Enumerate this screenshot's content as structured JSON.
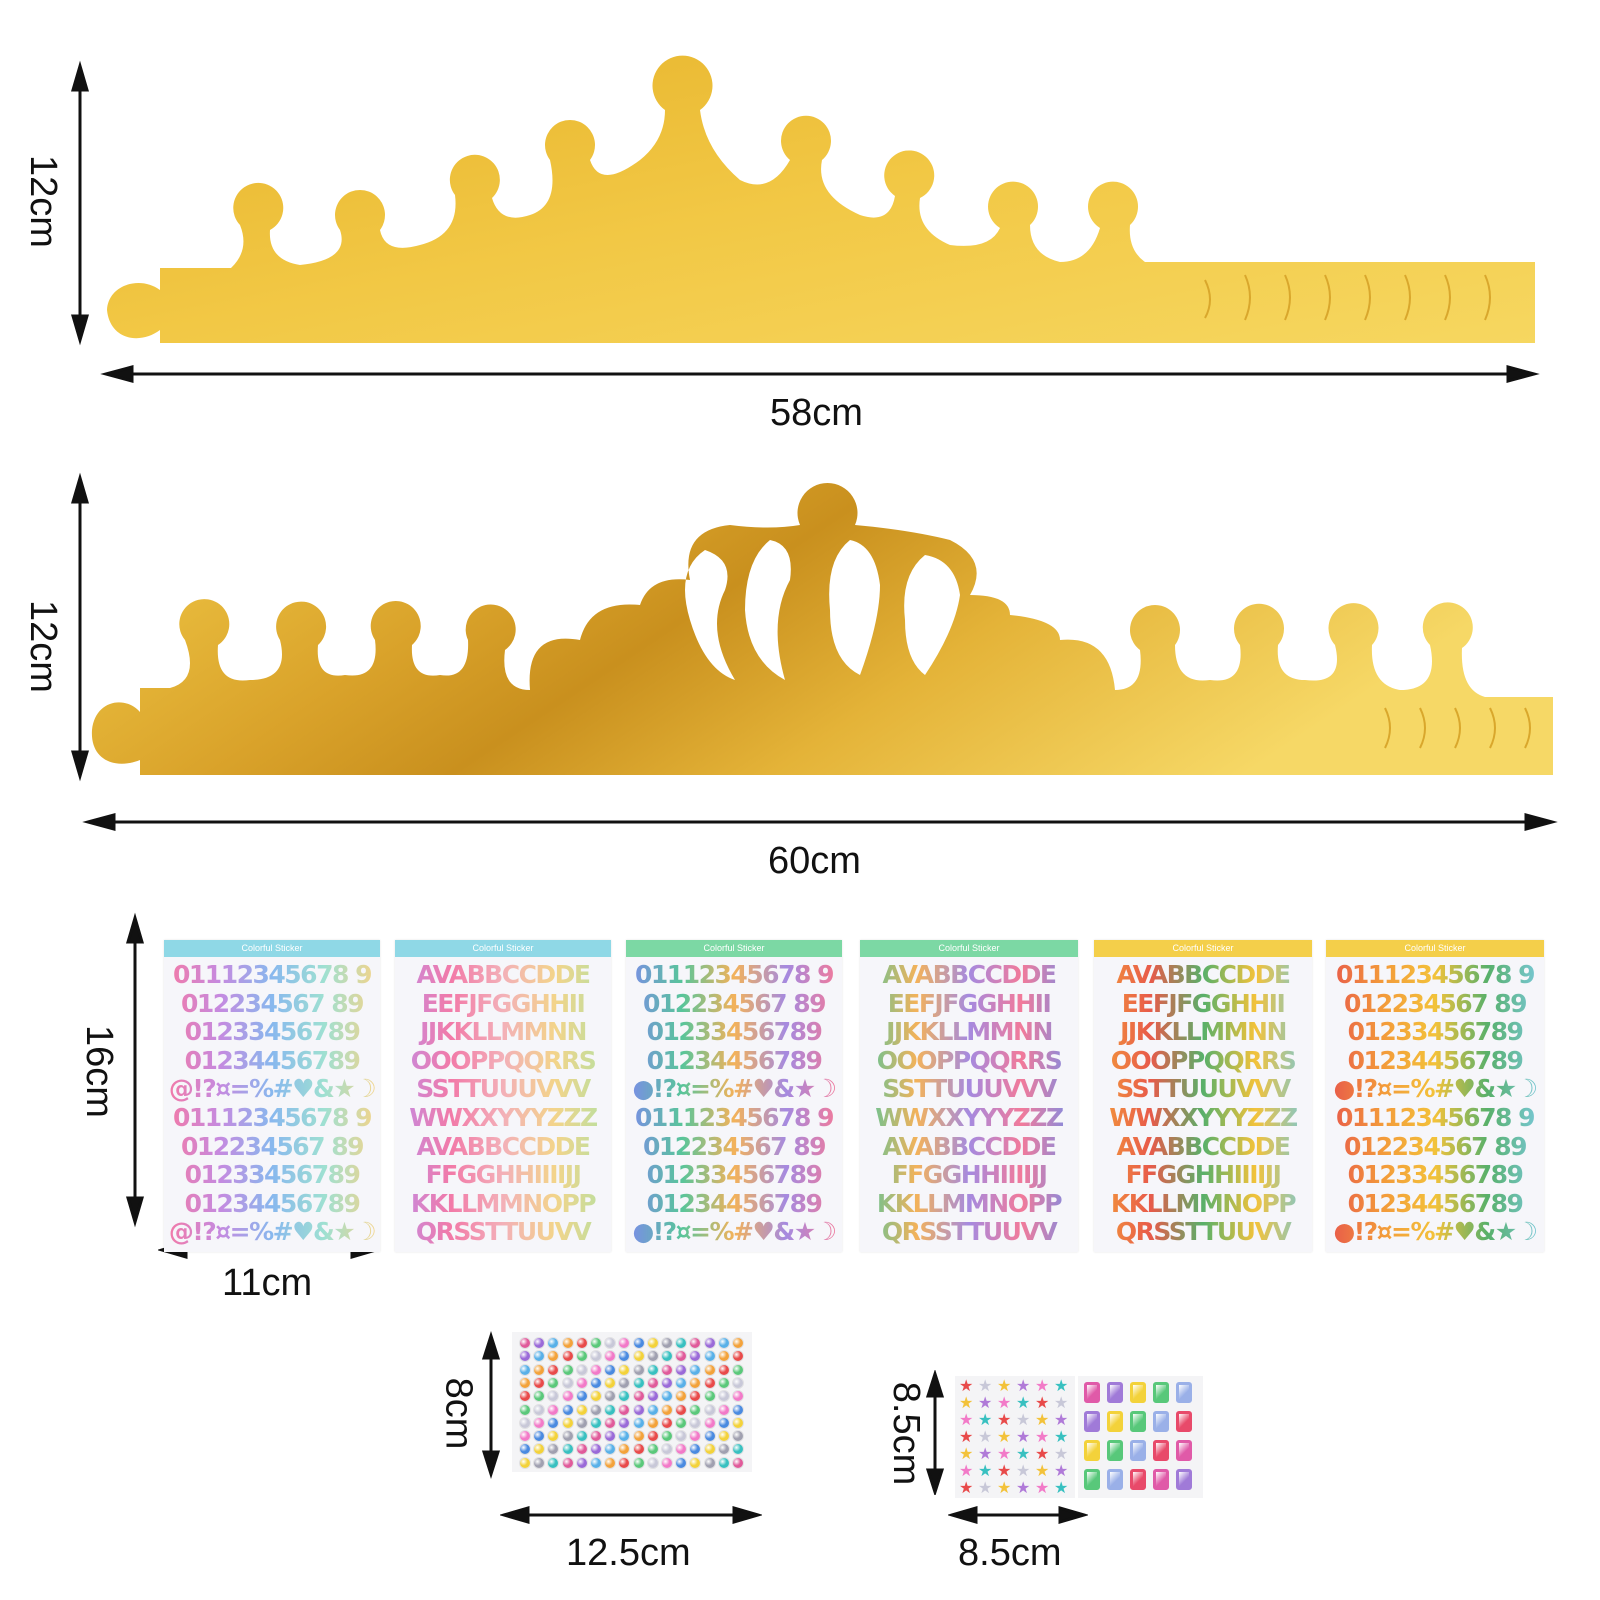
{
  "crown1": {
    "height_label": "12cm",
    "width_label": "58cm"
  },
  "crown2": {
    "height_label": "12cm",
    "width_label": "60cm"
  },
  "letter_sheets": {
    "height_label": "16cm",
    "width_label": "11cm",
    "header_text": "Colorful Sticker",
    "sheets": [
      {
        "color": "#8fd8e6",
        "gradient": "linear-gradient(90deg,#f27aa8,#c58ae0,#88b8ee,#9ee0d2,#f3d48a)",
        "rows": [
          "01112345678 9",
          "012234567 89",
          "01233456789",
          "01234456789",
          "@!?¤=%#♥&★☽",
          "01112345678 9",
          "012234567 89",
          "01233456789",
          "01234456789",
          "@!?¤=%#♥&★☽"
        ]
      },
      {
        "color": "#8fd8e6",
        "gradient": "linear-gradient(90deg,#c58ae0,#f27aa8,#f3b0b8,#f3d48a,#b8e0a0)",
        "rows": [
          "AVABBCCDDE",
          "EEFJFGGHHII",
          "JJKKLLMMNN",
          "OOOPPQQRRS",
          "SSTTUUUVVV",
          "WWXXYYYZZZ",
          "AVABBCCDDE",
          "FFGGHHIIIIJJ",
          "KKLLMMNOPP",
          "QRSSTTUUVV"
        ]
      },
      {
        "color": "#7cd8a4",
        "gradient": "linear-gradient(90deg,#7a8ee6,#58c59a,#f3b25a,#a58ae0,#f27a9a)",
        "rows": [
          "01112345678 9",
          "012234567 89",
          "01233456789",
          "01234456789",
          "●!?¤=%#♥&★☽",
          "01112345678 9",
          "012234567 89",
          "01233456789",
          "01234456789",
          "●!?¤=%#♥&★☽"
        ]
      },
      {
        "color": "#7cd8a4",
        "gradient": "linear-gradient(90deg,#58c59a,#f3b25a,#a58ae0,#f27a9a,#7a8ee6)",
        "rows": [
          "AVABBCCDDE",
          "EEFJFGGHHII",
          "JJKKLLMMNN",
          "OOOPPQQRRS",
          "SSTTUUUVVV",
          "WWXXYYYZZZ",
          "AVABBCCDDE",
          "FFGGHHIIIIJJ",
          "KKLLMMNOPP",
          "QRSSTTUUVV"
        ]
      },
      {
        "color": "#f4cf4a",
        "gradient": "linear-gradient(90deg,#f39a3a,#e85a4a,#58b06a,#f3c23a,#78c8d8)",
        "rows": [
          "AVABBCCDDE",
          "EEFJFGGHHII",
          "JJKKLLMMNN",
          "OOOPPQQRRS",
          "SSTTUUUVVV",
          "WWXXYYYZZZ",
          "AVABBCCDDE",
          "FFGGHHIIIIJJ",
          "KKLLMMNOPP",
          "QRSSTTUUVV"
        ]
      },
      {
        "color": "#f4cf4a",
        "gradient": "linear-gradient(90deg,#e85a4a,#f39a3a,#f3c23a,#58b06a,#78c8d8)",
        "rows": [
          "01112345678 9",
          "012234567 89",
          "01233456789",
          "01234456789",
          "●!?¤=%#♥&★☽",
          "01112345678 9",
          "012234567 89",
          "01233456789",
          "01234456789",
          "●!?¤=%#♥&★☽"
        ]
      }
    ]
  },
  "round_gems": {
    "height_label": "8cm",
    "width_label": "12.5cm",
    "colors": [
      "#e05a9a",
      "#9a6ad8",
      "#58b0e8",
      "#f3a23a",
      "#e84a4a",
      "#5ac87a",
      "#c8c8d8",
      "#f27ac8",
      "#4a8ae0",
      "#f3d23a",
      "#a0a0b0",
      "#38c0c0"
    ]
  },
  "star_gems": {
    "height_label": "8.5cm",
    "width_label": "8.5cm",
    "star_colors": [
      "#e84a4a",
      "#c8c8d8",
      "#f3c23a",
      "#b07ad8",
      "#f27ac8",
      "#38c0c0"
    ],
    "rect_colors": [
      "#e05aa8",
      "#a07ad8",
      "#f3d23a",
      "#58c87a",
      "#9ab0e8",
      "#e84a6a"
    ]
  }
}
